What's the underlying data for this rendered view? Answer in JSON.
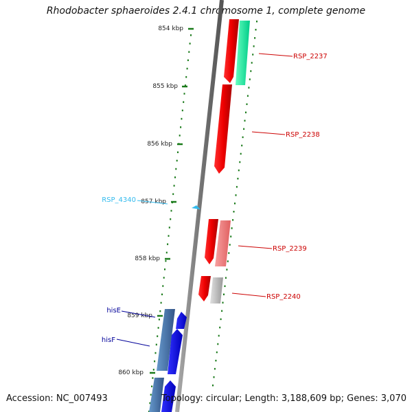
{
  "title": "Rhodobacter sphaeroides 2.4.1 chromosome 1, complete genome",
  "footer": {
    "accession": "Accession: NC_007493",
    "summary": "Topology: circular; Length: 3,188,609 bp; Genes: 3,070"
  },
  "scale_ticks": [
    "854 kbp",
    "855 kbp",
    "856 kbp",
    "857 kbp",
    "858 kbp",
    "859 kbp",
    "860 kbp"
  ],
  "genes": [
    {
      "label": "RSP_2237",
      "color": "#cc0000"
    },
    {
      "label": "RSP_2238",
      "color": "#cc0000"
    },
    {
      "label": "RSP_4340",
      "color": "#33bbee"
    },
    {
      "label": "RSP_2239",
      "color": "#cc0000"
    },
    {
      "label": "RSP_2240",
      "color": "#cc0000"
    },
    {
      "label": "hisE",
      "color": "#000099"
    },
    {
      "label": "hisF",
      "color": "#000099"
    }
  ],
  "colors": {
    "backbone": "#888888",
    "scale_dots": "#1a7a1a",
    "red_feature": "#ee0000",
    "pink_feature": "#f08080",
    "green_feature": "#11ee99",
    "grey_feature": "#bbbbbb",
    "blue_feature": "#0000ee",
    "steel_feature": "#4477aa",
    "cyan_feature": "#33bbee"
  }
}
